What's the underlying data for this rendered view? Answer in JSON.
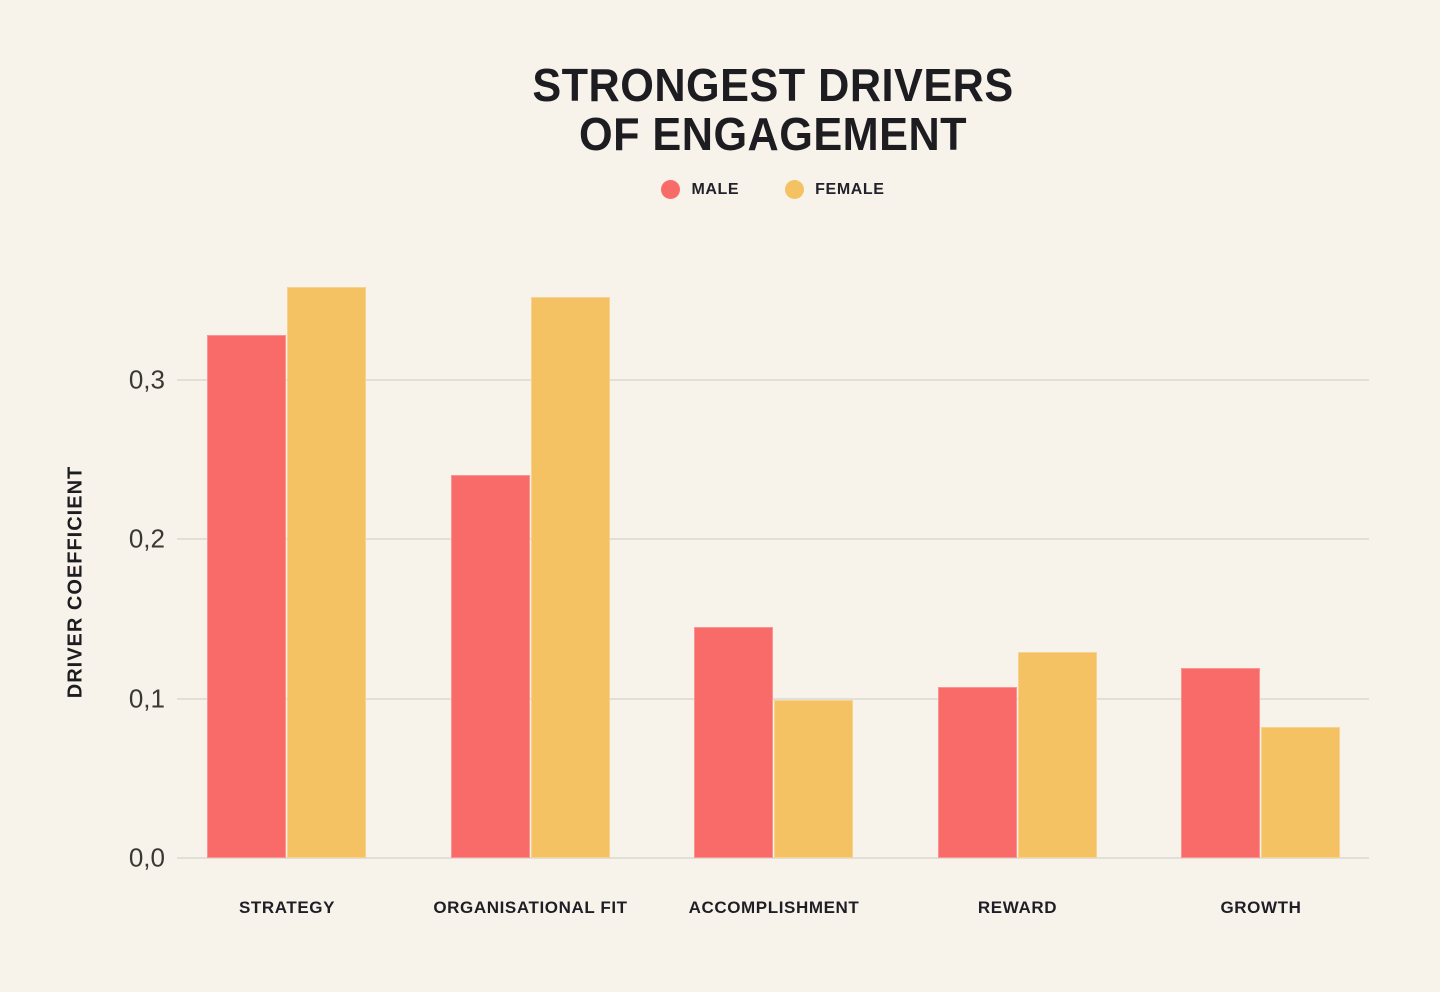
{
  "page": {
    "background": "#F8F3EA"
  },
  "title": {
    "lines": [
      "STRONGEST DRIVERS",
      "OF ENGAGEMENT"
    ]
  },
  "chart_data": {
    "type": "bar",
    "title": "STRONGEST DRIVERS OF ENGAGEMENT",
    "categories": [
      "STRATEGY",
      "ORGANISATIONAL FIT",
      "ACCOMPLISHMENT",
      "REWARD",
      "GROWTH"
    ],
    "series": [
      {
        "name": "MALE",
        "color": "#F96B68",
        "values": [
          0.328,
          0.24,
          0.145,
          0.107,
          0.119
        ]
      },
      {
        "name": "FEMALE",
        "color": "#F4C262",
        "values": [
          0.358,
          0.352,
          0.099,
          0.129,
          0.082
        ]
      }
    ],
    "xlabel": "",
    "ylabel": "DRIVER COEFFICIENT",
    "yticks": [
      {
        "value": 0.0,
        "label": "0,0"
      },
      {
        "value": 0.1,
        "label": "0,1"
      },
      {
        "value": 0.2,
        "label": "0,2"
      },
      {
        "value": 0.3,
        "label": "0,3"
      }
    ],
    "ylim": [
      0,
      0.381
    ],
    "decimal_separator": ",",
    "grid": true,
    "legend_position": "top-center",
    "colors": {
      "background": "#F8F3EA",
      "gridline": "#E2DFD6",
      "title_text": "#1D1C21",
      "tick_text": "#3A3833",
      "category_text": "#1F1E26"
    }
  }
}
